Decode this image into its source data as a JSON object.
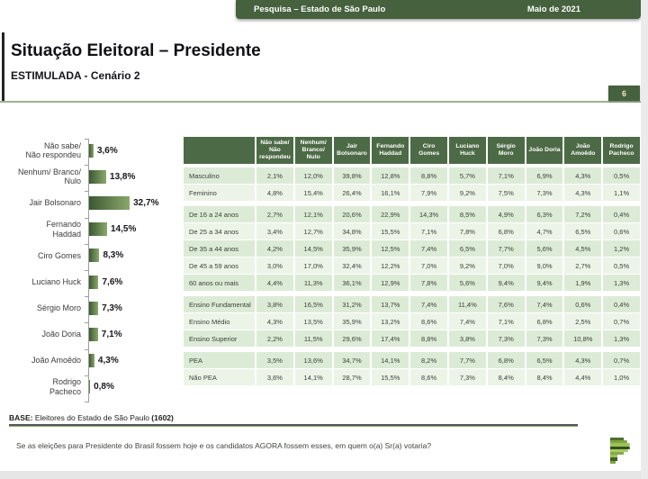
{
  "banner": {
    "left": "Pesquisa – Estado de São Paulo",
    "right": "Maio de 2021"
  },
  "title": "Situação Eleitoral – Presidente",
  "subtitle": "ESTIMULADA - Cenário 2",
  "page_number": "6",
  "colors": {
    "banner_green": "#45613d",
    "header_cell_green": "#4d6a46",
    "row_green_dark": "#dcebd6",
    "row_green_light": "#ecf4e8",
    "bar_gradient_start": "#3c5834",
    "bar_gradient_end": "#8aa86b",
    "rule_green": "#9cb292"
  },
  "chart_data": [
    {
      "type": "bar",
      "orientation": "horizontal",
      "title": "Situação Eleitoral – Presidente (ESTIMULADA - Cenário 2)",
      "categories": [
        "Não sabe/ Não respondeu",
        "Nenhum/ Branco/ Nulo",
        "Jair Bolsonaro",
        "Fernando Haddad",
        "Ciro Gomes",
        "Luciano Huck",
        "Sérgio Moro",
        "João Doria",
        "João Amoêdo",
        "Rodrigo Pacheco"
      ],
      "display_labels": [
        "Não sabe/\nNão respondeu",
        "Nenhum/ Branco/\nNulo",
        "Jair Bolsonaro",
        "Fernando\nHaddad",
        "Ciro Gomes",
        "Luciano Huck",
        "Sérgio Moro",
        "João Doria",
        "João Amoêdo",
        "Rodrigo\nPacheco"
      ],
      "values": [
        3.6,
        13.8,
        32.7,
        14.5,
        8.3,
        7.6,
        7.3,
        7.1,
        4.3,
        0.8
      ],
      "value_labels": [
        "3,6%",
        "13,8%",
        "32,7%",
        "14,5%",
        "8,3%",
        "7,6%",
        "7,3%",
        "7,1%",
        "4,3%",
        "0,8%"
      ],
      "xlim": [
        0,
        35
      ],
      "grid": false,
      "legend": false
    },
    {
      "type": "table",
      "columns": [
        "",
        "Não sabe/ Não\nrespondeu",
        "Nenhum/\nBranco/ Nulo",
        "Jair\nBolsonaro",
        "Fernando\nHaddad",
        "Ciro\nGomes",
        "Luciano\nHuck",
        "Sérgio\nMoro",
        "João Doria",
        "João\nAmoêdo",
        "Rodrigo\nPacheco"
      ],
      "groups": [
        {
          "rows": [
            {
              "label": "Masculino",
              "values": [
                "2,1%",
                "12,0%",
                "39,8%",
                "12,8%",
                "8,8%",
                "5,7%",
                "7,1%",
                "6,9%",
                "4,3%",
                "0,5%"
              ]
            },
            {
              "label": "Feminino",
              "values": [
                "4,8%",
                "15,4%",
                "26,4%",
                "16,1%",
                "7,9%",
                "9,2%",
                "7,5%",
                "7,3%",
                "4,3%",
                "1,1%"
              ]
            }
          ]
        },
        {
          "rows": [
            {
              "label": "De 16 a 24 anos",
              "values": [
                "2,7%",
                "12,1%",
                "20,6%",
                "22,9%",
                "14,3%",
                "8,5%",
                "4,9%",
                "6,3%",
                "7,2%",
                "0,4%"
              ]
            },
            {
              "label": "De 25 a 34 anos",
              "values": [
                "3,4%",
                "12,7%",
                "34,8%",
                "15,5%",
                "7,1%",
                "7,8%",
                "6,8%",
                "4,7%",
                "6,5%",
                "0,6%"
              ]
            },
            {
              "label": "De 35 a 44 anos",
              "values": [
                "4,2%",
                "14,5%",
                "35,9%",
                "12,5%",
                "7,4%",
                "6,5%",
                "7,7%",
                "5,6%",
                "4,5%",
                "1,2%"
              ]
            },
            {
              "label": "De 45 a 59 anos",
              "values": [
                "3,0%",
                "17,0%",
                "32,4%",
                "12,2%",
                "7,0%",
                "9,2%",
                "7,0%",
                "9,0%",
                "2,7%",
                "0,5%"
              ]
            },
            {
              "label": "60 anos ou mais",
              "values": [
                "4,4%",
                "11,3%",
                "36,1%",
                "12,9%",
                "7,8%",
                "5,6%",
                "9,4%",
                "9,4%",
                "1,9%",
                "1,3%"
              ]
            }
          ]
        },
        {
          "rows": [
            {
              "label": "Ensino Fundamental",
              "values": [
                "3,8%",
                "16,5%",
                "31,2%",
                "13,7%",
                "7,4%",
                "11,4%",
                "7,6%",
                "7,4%",
                "0,6%",
                "0,4%"
              ]
            },
            {
              "label": "Ensino Médio",
              "values": [
                "4,3%",
                "13,5%",
                "35,9%",
                "13,2%",
                "8,6%",
                "7,4%",
                "7,1%",
                "6,8%",
                "2,5%",
                "0,7%"
              ]
            },
            {
              "label": "Ensino Superior",
              "values": [
                "2,2%",
                "11,5%",
                "29,6%",
                "17,4%",
                "8,8%",
                "3,8%",
                "7,3%",
                "7,3%",
                "10,8%",
                "1,3%"
              ]
            }
          ]
        },
        {
          "rows": [
            {
              "label": "PEA",
              "values": [
                "3,5%",
                "13,6%",
                "34,7%",
                "14,1%",
                "8,2%",
                "7,7%",
                "6,8%",
                "6,5%",
                "4,3%",
                "0,7%"
              ]
            },
            {
              "label": "Não PEA",
              "values": [
                "3,6%",
                "14,1%",
                "28,7%",
                "15,5%",
                "8,6%",
                "7,3%",
                "8,4%",
                "8,4%",
                "4,4%",
                "1,0%"
              ]
            }
          ]
        }
      ]
    }
  ],
  "base_note": {
    "prefix": "BASE:",
    "text": " Eleitores do Estado de São Paulo ",
    "count": "(1602)"
  },
  "question": "Se as eleições para Presidente do Brasil fossem hoje e os candidatos AGORA fossem esses, em quem o(a) Sr(a) votaria?",
  "logo": {
    "name": "striped-p-logo",
    "stripes": [
      {
        "w": 15,
        "c": "#4a7030",
        "r": 0
      },
      {
        "w": 19,
        "c": "#7da33f",
        "r": 2
      },
      {
        "w": 22,
        "c": "#9cc355",
        "r": 4
      },
      {
        "w": 22,
        "c": "#33511f",
        "r": 4
      },
      {
        "w": 20,
        "c": "#aacb66",
        "r": 3
      },
      {
        "w": 15,
        "c": "#86a94c",
        "r": 0
      },
      {
        "w": 8,
        "c": "#9cc355",
        "r": 0
      },
      {
        "w": 8,
        "c": "#3f6128",
        "r": 0
      },
      {
        "w": 6,
        "c": "#7da33f",
        "r": 0
      }
    ]
  }
}
